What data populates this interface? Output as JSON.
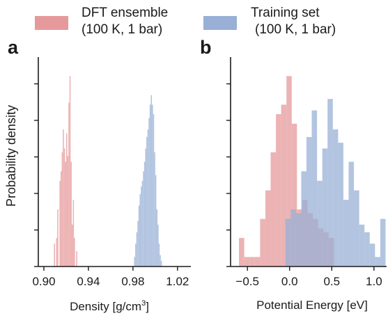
{
  "legend": {
    "items": [
      {
        "line1": "DFT ensemble",
        "line2": "(100 K, 1 bar)",
        "color": "#e6999b"
      },
      {
        "line1": "Training set",
        "line2": "(100 K, 1 bar)",
        "color": "#98b0d6"
      }
    ],
    "placement": "top-center, above panels"
  },
  "chart_data": [
    {
      "panel": "a",
      "type": "bar",
      "subtype": "histogram",
      "xlabel": "Density [g/cm",
      "xlabel_sup": "3",
      "xlabel_end": "]",
      "ylabel": "Probability density",
      "xlim": [
        0.895,
        1.032
      ],
      "ylim": [
        0,
        1.1
      ],
      "xticks": [
        0.9,
        0.94,
        0.98,
        1.02
      ],
      "xtick_labels": [
        "0.90",
        "0.94",
        "0.98",
        "1.02"
      ],
      "y_tick_labels_shown": false,
      "bin_width": 0.001,
      "series": [
        {
          "name": "DFT ensemble (100 K, 1 bar)",
          "color": "#e6999b",
          "bins_left": [
            0.909,
            0.91,
            0.911,
            0.912,
            0.913,
            0.914,
            0.915,
            0.916,
            0.917,
            0.918,
            0.919,
            0.92,
            0.921,
            0.922,
            0.923,
            0.924,
            0.925,
            0.926,
            0.927,
            0.928,
            0.929
          ],
          "values": [
            0.12,
            0.0,
            0.15,
            0.3,
            0.0,
            0.45,
            0.5,
            0.6,
            0.72,
            0.62,
            0.55,
            0.7,
            0.58,
            0.86,
            1.0,
            0.55,
            0.22,
            0.35,
            0.15,
            0.0,
            0.08
          ]
        },
        {
          "name": "Training set (100 K, 1 bar)",
          "color": "#98b0d6",
          "bins_left": [
            0.981,
            0.982,
            0.983,
            0.984,
            0.985,
            0.986,
            0.987,
            0.988,
            0.989,
            0.99,
            0.991,
            0.992,
            0.993,
            0.994,
            0.995,
            0.996,
            0.997,
            0.998,
            0.999,
            1.0,
            1.001,
            1.002,
            1.003,
            1.004,
            1.005
          ],
          "values": [
            0.05,
            0.12,
            0.18,
            0.24,
            0.32,
            0.38,
            0.42,
            0.45,
            0.5,
            0.55,
            0.62,
            0.68,
            0.72,
            0.78,
            0.85,
            0.9,
            0.85,
            0.8,
            0.6,
            0.48,
            0.3,
            0.22,
            0.12,
            0.06,
            0.03
          ]
        }
      ]
    },
    {
      "panel": "b",
      "type": "bar",
      "subtype": "histogram",
      "xlabel": "Potential Energy [eV]",
      "ylabel": "",
      "xlim": [
        -0.7,
        1.15
      ],
      "ylim": [
        0,
        1.1
      ],
      "xticks": [
        -0.5,
        0.0,
        0.5,
        1.0
      ],
      "xtick_labels": [
        "−0.5",
        "0.0",
        "0.5",
        "1.0"
      ],
      "y_tick_labels_shown": false,
      "bin_width": 0.0625,
      "series": [
        {
          "name": "DFT ensemble (100 K, 1 bar)",
          "color": "#e6999b",
          "bins_left": [
            -0.6,
            -0.5375,
            -0.475,
            -0.4125,
            -0.35,
            -0.2875,
            -0.225,
            -0.1625,
            -0.1,
            -0.0375,
            0.025,
            0.0875,
            0.15,
            0.2125,
            0.275,
            0.3375,
            0.4,
            0.4625
          ],
          "values": [
            0.15,
            0.05,
            0.05,
            0.05,
            0.25,
            0.4,
            0.6,
            0.8,
            0.85,
            1.0,
            0.75,
            0.3,
            0.35,
            0.28,
            0.25,
            0.2,
            0.18,
            0.15
          ]
        },
        {
          "name": "Training set (100 K, 1 bar)",
          "color": "#98b0d6",
          "bins_left": [
            -0.05,
            0.0125,
            0.075,
            0.1375,
            0.2,
            0.2625,
            0.325,
            0.3875,
            0.45,
            0.5125,
            0.575,
            0.6375,
            0.7,
            0.7625,
            0.825,
            0.8875,
            0.95,
            1.0125,
            1.075
          ],
          "values": [
            0.25,
            0.3,
            0.28,
            0.5,
            0.68,
            0.82,
            0.45,
            0.62,
            0.88,
            0.72,
            0.65,
            0.35,
            0.55,
            0.4,
            0.22,
            0.18,
            0.12,
            0.05,
            0.25
          ]
        }
      ]
    }
  ]
}
